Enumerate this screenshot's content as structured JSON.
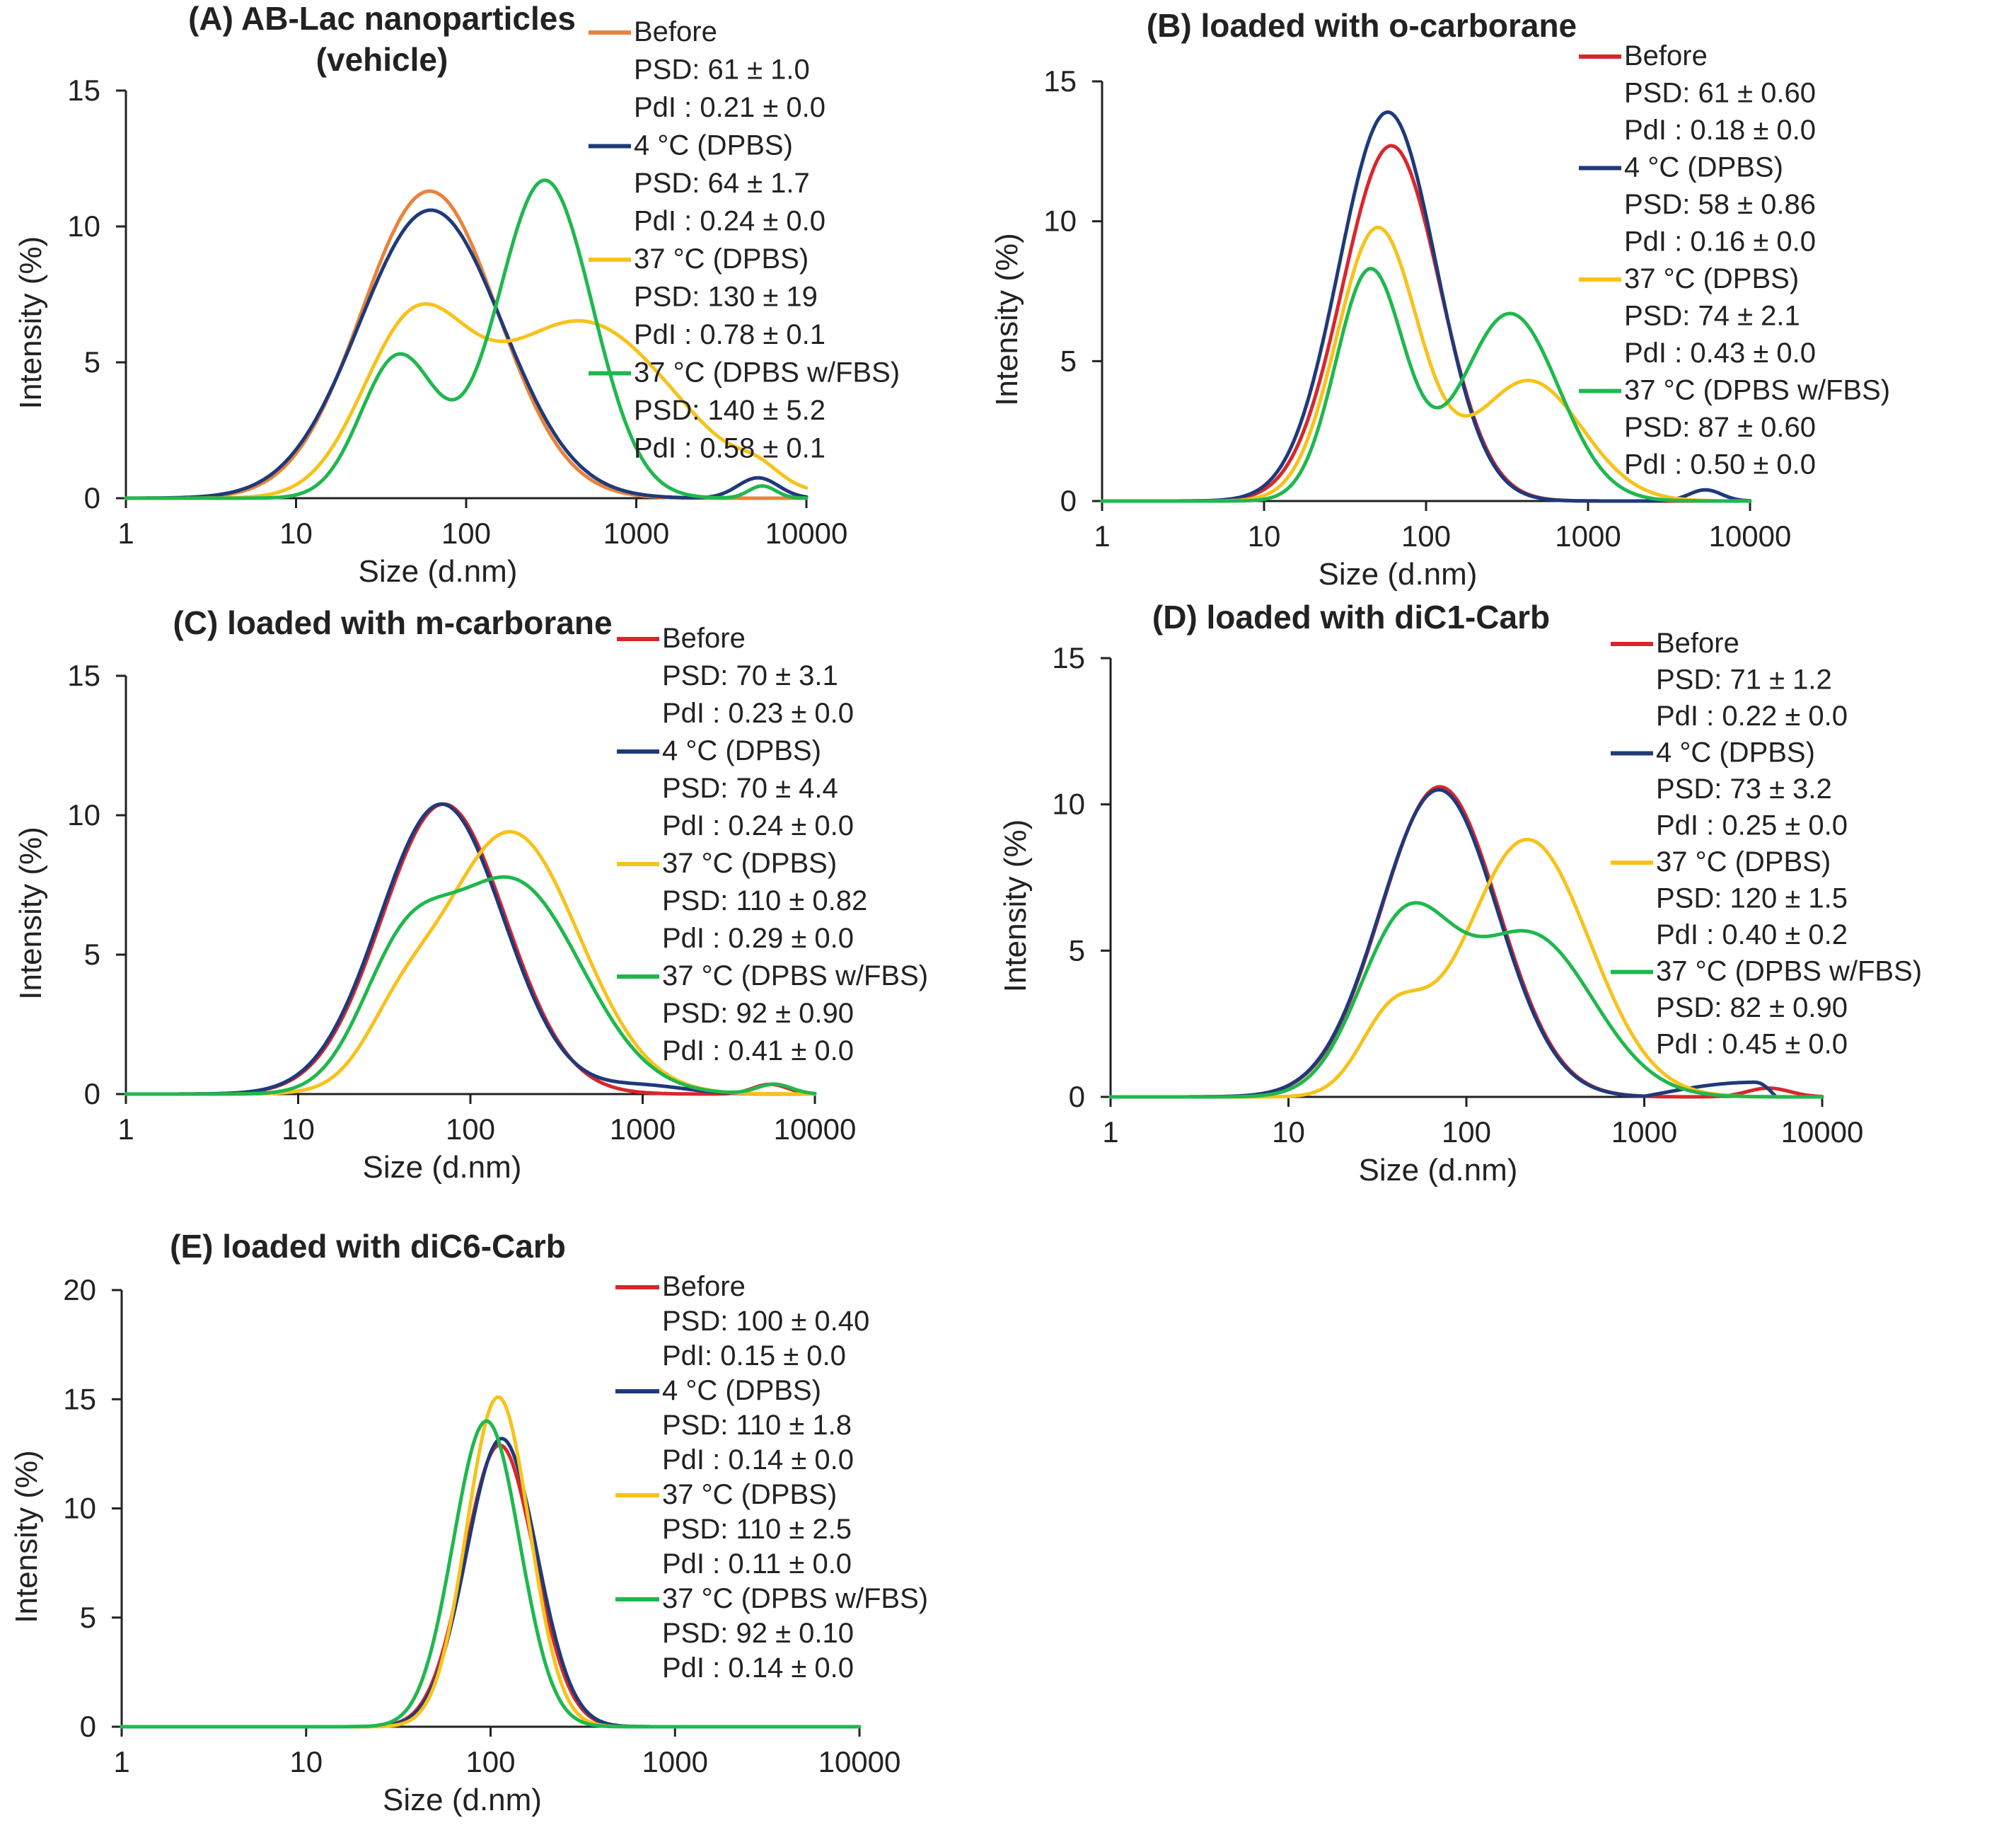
{
  "figure": {
    "x_label": "Size (d.nm)",
    "y_label": "Intensity (%)"
  },
  "colors": {
    "before_orange": "#E8833A",
    "before_red": "#D9262C",
    "cold": "#1F3A7A",
    "warm": "#F7C21A",
    "fbs": "#1FB84E"
  },
  "chart_data": [
    {
      "id": "A",
      "type": "line",
      "title": "(A) AB-Lac nanoparticles",
      "title2": "(vehicle)",
      "xlabel": "Size (d.nm)",
      "ylabel": "Intensity (%)",
      "xscale": "log",
      "xlim": [
        1,
        10000
      ],
      "ylim": [
        0,
        15
      ],
      "x_ticks": [
        "1",
        "10",
        "100",
        "1000",
        "10000"
      ],
      "y_ticks": [
        "0",
        "5",
        "10",
        "15"
      ],
      "legend_position": "top-right",
      "series": [
        {
          "name": "Before",
          "color": "#E8833A",
          "psd": "PSD: 61 ± 1.0",
          "pdi": "PdI : 0.21 ± 0.0",
          "peaks": [
            {
              "center": 61,
              "height": 11.3,
              "sigma": 0.4
            }
          ],
          "tail": null
        },
        {
          "name": "4 °C (DPBS)",
          "color": "#1F3A7A",
          "psd": "PSD: 64 ± 1.7",
          "pdi": "PdI : 0.24 ± 0.0",
          "peaks": [
            {
              "center": 62,
              "height": 10.6,
              "sigma": 0.42
            },
            {
              "center": 5200,
              "height": 0.75,
              "sigma": 0.12
            }
          ],
          "tail": null
        },
        {
          "name": "37 °C (DPBS)",
          "color": "#F7C21A",
          "psd": "PSD: 130 ± 19",
          "pdi": "PdI : 0.78 ± 0.1",
          "peaks": [
            {
              "center": 48,
              "height": 5.7,
              "sigma": 0.3
            },
            {
              "center": 470,
              "height": 6.5,
              "sigma": 0.55
            },
            {
              "center": 5200,
              "height": 0.45,
              "sigma": 0.12
            }
          ],
          "tail": null
        },
        {
          "name": "37 °C (DPBS w/FBS)",
          "color": "#1FB84E",
          "psd": "PSD: 140 ± 5.2",
          "pdi": "PdI : 0.58 ± 0.1",
          "peaks": [
            {
              "center": 40,
              "height": 5.2,
              "sigma": 0.22
            },
            {
              "center": 290,
              "height": 11.7,
              "sigma": 0.28
            },
            {
              "center": 5500,
              "height": 0.45,
              "sigma": 0.08
            }
          ],
          "tail": null
        }
      ]
    },
    {
      "id": "B",
      "type": "line",
      "title": "(B) loaded with o-carborane",
      "xlabel": "Size (d.nm)",
      "ylabel": "Intensity (%)",
      "xscale": "log",
      "xlim": [
        1,
        10000
      ],
      "ylim": [
        0,
        15
      ],
      "x_ticks": [
        "1",
        "10",
        "100",
        "1000",
        "10000"
      ],
      "y_ticks": [
        "0",
        "5",
        "10",
        "15"
      ],
      "legend_position": "top-right",
      "series": [
        {
          "name": "Before",
          "color": "#D9262C",
          "psd": "PSD: 61 ± 0.60",
          "pdi": "PdI : 0.18 ± 0.0",
          "peaks": [
            {
              "center": 61,
              "height": 12.7,
              "sigma": 0.3
            }
          ],
          "tail": null
        },
        {
          "name": "4 °C (DPBS)",
          "color": "#1F3A7A",
          "psd": "PSD: 58 ± 0.86",
          "pdi": "PdI : 0.16 ± 0.0",
          "peaks": [
            {
              "center": 58,
              "height": 13.9,
              "sigma": 0.3
            },
            {
              "center": 5300,
              "height": 0.4,
              "sigma": 0.1
            }
          ],
          "tail": null
        },
        {
          "name": "37 °C (DPBS)",
          "color": "#F7C21A",
          "psd": "PSD: 74 ± 2.1",
          "pdi": "PdI : 0.43 ± 0.0",
          "peaks": [
            {
              "center": 50,
              "height": 9.7,
              "sigma": 0.25
            },
            {
              "center": 430,
              "height": 4.3,
              "sigma": 0.33
            }
          ],
          "tail": null
        },
        {
          "name": "37 °C (DPBS w/FBS)",
          "color": "#1FB84E",
          "psd": "PSD: 87 ± 0.60",
          "pdi": "PdI : 0.50 ± 0.0",
          "peaks": [
            {
              "center": 45,
              "height": 8.2,
              "sigma": 0.21
            },
            {
              "center": 330,
              "height": 6.7,
              "sigma": 0.3
            }
          ],
          "tail": null
        }
      ]
    },
    {
      "id": "C",
      "type": "line",
      "title": "(C) loaded with m-carborane",
      "xlabel": "Size (d.nm)",
      "ylabel": "Intensity (%)",
      "xscale": "log",
      "xlim": [
        1,
        10000
      ],
      "ylim": [
        0,
        15
      ],
      "x_ticks": [
        "1",
        "10",
        "100",
        "1000",
        "10000"
      ],
      "y_ticks": [
        "0",
        "5",
        "10",
        "15"
      ],
      "legend_position": "top-right",
      "series": [
        {
          "name": "Before",
          "color": "#D9262C",
          "psd": "PSD: 70 ± 3.1",
          "pdi": "PdI : 0.23 ± 0.0",
          "peaks": [
            {
              "center": 70,
              "height": 10.4,
              "sigma": 0.36
            },
            {
              "center": 5500,
              "height": 0.35,
              "sigma": 0.1
            }
          ],
          "tail": null
        },
        {
          "name": "4 °C (DPBS)",
          "color": "#1F3A7A",
          "psd": "PSD: 70 ± 4.4",
          "pdi": "PdI : 0.24 ± 0.0",
          "peaks": [
            {
              "center": 68,
              "height": 10.4,
              "sigma": 0.36
            },
            {
              "center": 1000,
              "height": 0.3,
              "sigma": 0.25
            }
          ],
          "tail": null
        },
        {
          "name": "37 °C (DPBS)",
          "color": "#F7C21A",
          "psd": "PSD: 110 ± 0.82",
          "pdi": "PdI : 0.29 ± 0.0",
          "peaks": [
            {
              "center": 170,
              "height": 9.4,
              "sigma": 0.4
            },
            {
              "center": 38,
              "height": 1.6,
              "sigma": 0.2
            }
          ],
          "tail": null
        },
        {
          "name": "37 °C (DPBS w/FBS)",
          "color": "#1FB84E",
          "psd": "PSD: 92 ± 0.90",
          "pdi": "PdI : 0.41 ± 0.0",
          "peaks": [
            {
              "center": 40,
              "height": 4.0,
              "sigma": 0.25
            },
            {
              "center": 175,
              "height": 7.6,
              "sigma": 0.4
            },
            {
              "center": 5800,
              "height": 0.35,
              "sigma": 0.1
            }
          ],
          "tail": null
        }
      ]
    },
    {
      "id": "D",
      "type": "line",
      "title": "(D) loaded with diC1-Carb",
      "xlabel": "Size (d.nm)",
      "ylabel": "Intensity (%)",
      "xscale": "log",
      "xlim": [
        1,
        10000
      ],
      "ylim": [
        0,
        15
      ],
      "x_ticks": [
        "1",
        "10",
        "100",
        "1000",
        "10000"
      ],
      "y_ticks": [
        "0",
        "5",
        "10",
        "15"
      ],
      "legend_position": "top-right",
      "series": [
        {
          "name": "Before",
          "color": "#D9262C",
          "psd": "PSD: 71 ± 1.2",
          "pdi": "PdI : 0.22 ± 0.0",
          "peaks": [
            {
              "center": 71,
              "height": 10.6,
              "sigma": 0.33
            },
            {
              "center": 5000,
              "height": 0.3,
              "sigma": 0.12
            }
          ],
          "tail": null
        },
        {
          "name": "4 °C (DPBS)",
          "color": "#1F3A7A",
          "psd": "PSD: 73 ± 3.2",
          "pdi": "PdI : 0.25 ± 0.0",
          "peaks": [
            {
              "center": 70,
              "height": 10.5,
              "sigma": 0.33
            }
          ],
          "tail": {
            "from": 1000,
            "to": 5500,
            "peak": 4200,
            "height": 0.5
          }
        },
        {
          "name": "37 °C (DPBS)",
          "color": "#F7C21A",
          "psd": "PSD: 120 ± 1.5",
          "pdi": "PdI : 0.40 ± 0.2",
          "peaks": [
            {
              "center": 38,
              "height": 2.5,
              "sigma": 0.18
            },
            {
              "center": 220,
              "height": 8.8,
              "sigma": 0.35
            }
          ],
          "tail": null
        },
        {
          "name": "37 °C (DPBS w/FBS)",
          "color": "#1FB84E",
          "psd": "PSD: 82 ± 0.90",
          "pdi": "PdI : 0.45 ± 0.0",
          "peaks": [
            {
              "center": 45,
              "height": 5.8,
              "sigma": 0.26
            },
            {
              "center": 230,
              "height": 5.5,
              "sigma": 0.35
            }
          ],
          "tail": null
        }
      ]
    },
    {
      "id": "E",
      "type": "line",
      "title": "(E) loaded with diC6-Carb",
      "xlabel": "Size (d.nm)",
      "ylabel": "Intensity (%)",
      "xscale": "log",
      "xlim": [
        1,
        10000
      ],
      "ylim": [
        0,
        20
      ],
      "x_ticks": [
        "1",
        "10",
        "100",
        "1000",
        "10000"
      ],
      "y_ticks": [
        "0",
        "5",
        "10",
        "15",
        "20"
      ],
      "legend_position": "top-right",
      "series": [
        {
          "name": "Before",
          "color": "#D9262C",
          "psd": "PSD: 100 ± 0.40",
          "pdi": "PdI: 0.15 ± 0.0",
          "peaks": [
            {
              "center": 112,
              "height": 12.9,
              "sigma": 0.19
            }
          ],
          "tail": null
        },
        {
          "name": "4 °C (DPBS)",
          "color": "#1F3A7A",
          "psd": "PSD: 110 ± 1.8",
          "pdi": "PdI : 0.14 ± 0.0",
          "peaks": [
            {
              "center": 115,
              "height": 13.2,
              "sigma": 0.19
            }
          ],
          "tail": null
        },
        {
          "name": "37 °C (DPBS)",
          "color": "#F7C21A",
          "psd": "PSD: 110 ± 2.5",
          "pdi": "PdI : 0.11 ± 0.0",
          "peaks": [
            {
              "center": 110,
              "height": 15.1,
              "sigma": 0.17
            }
          ],
          "tail": null
        },
        {
          "name": "37 °C (DPBS w/FBS)",
          "color": "#1FB84E",
          "psd": "PSD: 92 ± 0.10",
          "pdi": "PdI : 0.14 ± 0.0",
          "peaks": [
            {
              "center": 95,
              "height": 14.0,
              "sigma": 0.18
            }
          ],
          "tail": null
        }
      ]
    }
  ]
}
